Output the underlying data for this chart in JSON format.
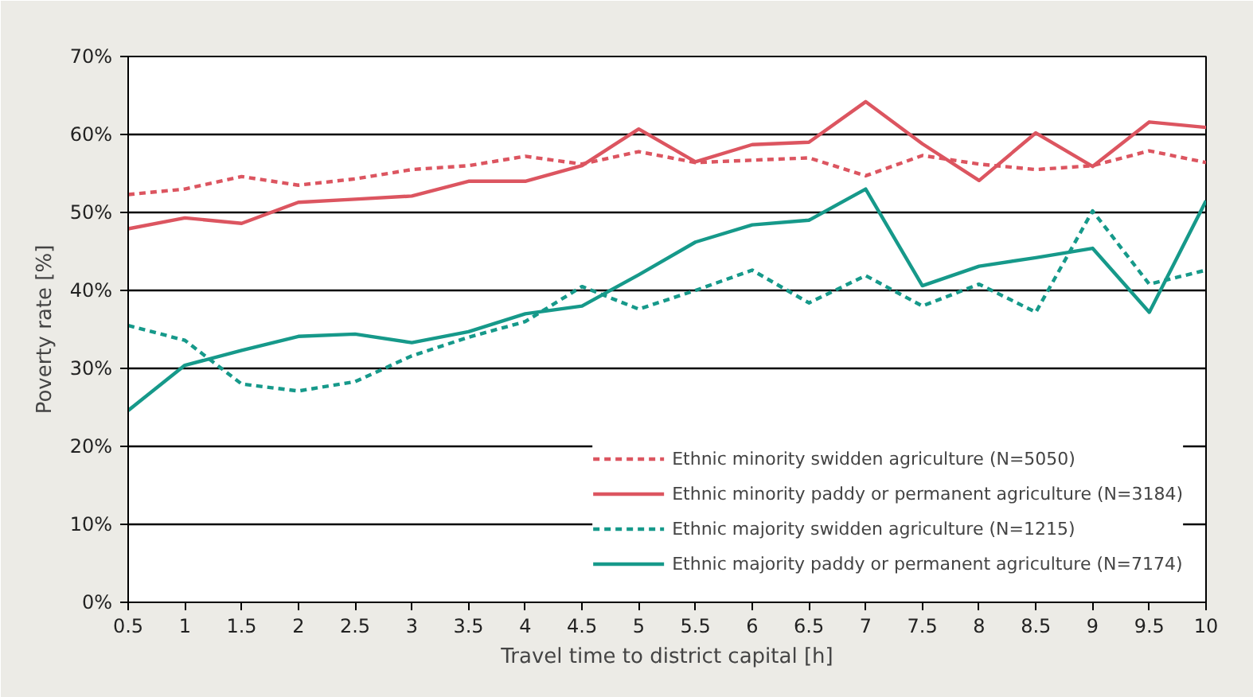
{
  "chart_data": {
    "type": "line",
    "xlabel": "Travel time to district capital [h]",
    "ylabel": "Poverty rate [%]",
    "categories": [
      "0.5",
      "1",
      "1.5",
      "2",
      "2.5",
      "3",
      "3.5",
      "4",
      "4.5",
      "5",
      "5.5",
      "6",
      "6.5",
      "7",
      "7.5",
      "8",
      "8.5",
      "9",
      "9.5",
      "10"
    ],
    "ylim": [
      0,
      70
    ],
    "yticks": [
      {
        "value": 0,
        "label": "0%"
      },
      {
        "value": 10,
        "label": "10%"
      },
      {
        "value": 20,
        "label": "20%"
      },
      {
        "value": 30,
        "label": "30%"
      },
      {
        "value": 40,
        "label": "40%"
      },
      {
        "value": 50,
        "label": "50%"
      },
      {
        "value": 60,
        "label": "60%"
      },
      {
        "value": 70,
        "label": "70%"
      }
    ],
    "grid": "y",
    "legend": "bottom right",
    "marker": "none",
    "series": [
      {
        "name": "Ethnic minority swidden agriculture (N=5050)",
        "color": "#dc5560",
        "line_style": "dashed",
        "values": [
          52.3,
          53,
          54.6,
          53.5,
          54.3,
          55.5,
          56,
          57.2,
          56.2,
          57.8,
          56.4,
          56.7,
          57,
          54.7,
          57.3,
          56.2,
          55.5,
          56,
          57.9,
          56.4
        ]
      },
      {
        "name": "Ethnic minority paddy or permanent agriculture (N=3184)",
        "color": "#dc5560",
        "line_style": "solid",
        "values": [
          47.9,
          49.3,
          48.6,
          51.3,
          51.7,
          52.1,
          54,
          54,
          56,
          60.7,
          56.5,
          58.7,
          59,
          64.2,
          58.8,
          54.1,
          60.2,
          55.9,
          61.6,
          60.9
        ]
      },
      {
        "name": "Ethnic majority swidden agriculture (N=1215)",
        "color": "#16998a",
        "line_style": "dashed",
        "values": [
          35.5,
          33.6,
          28,
          27.1,
          28.3,
          31.6,
          34,
          36,
          40.5,
          37.6,
          40,
          42.6,
          38.4,
          41.9,
          38,
          40.8,
          37.2,
          50.2,
          40.8,
          42.6
        ]
      },
      {
        "name": "Ethnic majority paddy or permanent agriculture (N=7174)",
        "color": "#16998a",
        "line_style": "solid",
        "values": [
          24.6,
          30.4,
          32.3,
          34.1,
          34.4,
          33.3,
          34.7,
          37,
          38,
          42,
          46.2,
          48.4,
          49,
          53,
          40.6,
          43.1,
          44.2,
          45.4,
          37.2,
          51.5
        ]
      }
    ]
  }
}
